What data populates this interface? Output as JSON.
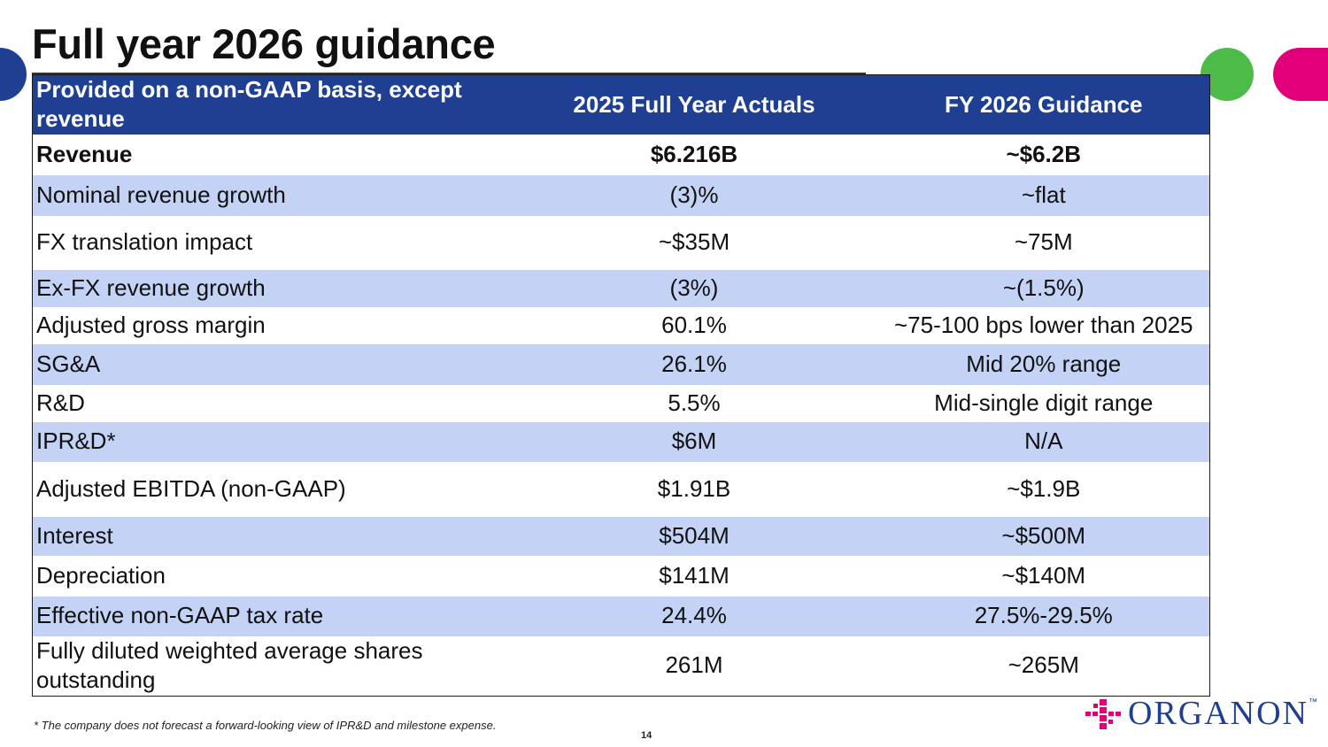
{
  "slide": {
    "title": "Full year 2026 guidance",
    "footnote": "* The company does not forecast a forward-looking view of IPR&D and milestone expense.",
    "page_number": "14",
    "brand": {
      "logo_text": "ORGANON",
      "trademark": "™"
    }
  },
  "colors": {
    "header_bg": "#1f3f93",
    "row_shade": "#c4d3f5",
    "accent_green": "#4cbb47",
    "accent_pink": "#e2007a"
  },
  "table": {
    "headers": [
      "Provided on a non-GAAP basis, except revenue",
      "2025 Full Year Actuals",
      "FY 2026 Guidance"
    ],
    "rows": [
      {
        "metric": "Revenue",
        "actual": "$6.216B",
        "guidance": "~$6.2B",
        "bold": true,
        "shaded": false
      },
      {
        "metric": "Nominal revenue growth",
        "actual": "(3)%",
        "guidance": "~flat",
        "bold": false,
        "shaded": true
      },
      {
        "metric": "FX translation impact",
        "actual": "~$35M",
        "guidance": "~75M",
        "bold": false,
        "shaded": false
      },
      {
        "metric": "Ex-FX revenue growth",
        "actual": "(3%)",
        "guidance": "~(1.5%)",
        "bold": false,
        "shaded": true
      },
      {
        "metric": "Adjusted gross margin",
        "actual": "60.1%",
        "guidance": "~75-100 bps lower than 2025",
        "bold": false,
        "shaded": false
      },
      {
        "metric": "SG&A",
        "actual": "26.1%",
        "guidance": "Mid 20% range",
        "bold": false,
        "shaded": true
      },
      {
        "metric": "R&D",
        "actual": "5.5%",
        "guidance": "Mid-single digit range",
        "bold": false,
        "shaded": false
      },
      {
        "metric": "IPR&D*",
        "actual": "$6M",
        "guidance": "N/A",
        "bold": false,
        "shaded": true
      },
      {
        "metric": "Adjusted EBITDA (non-GAAP)",
        "actual": "$1.91B",
        "guidance": "~$1.9B",
        "bold": false,
        "shaded": false
      },
      {
        "metric": "Interest",
        "actual": "$504M",
        "guidance": "~$500M",
        "bold": false,
        "shaded": true
      },
      {
        "metric": "Depreciation",
        "actual": "$141M",
        "guidance": "~$140M",
        "bold": false,
        "shaded": false
      },
      {
        "metric": "Effective non-GAAP tax rate",
        "actual": "24.4%",
        "guidance": "27.5%-29.5%",
        "bold": false,
        "shaded": true
      },
      {
        "metric": "Fully diluted weighted average shares outstanding",
        "actual": "261M",
        "guidance": "~265M",
        "bold": false,
        "shaded": false
      }
    ]
  }
}
